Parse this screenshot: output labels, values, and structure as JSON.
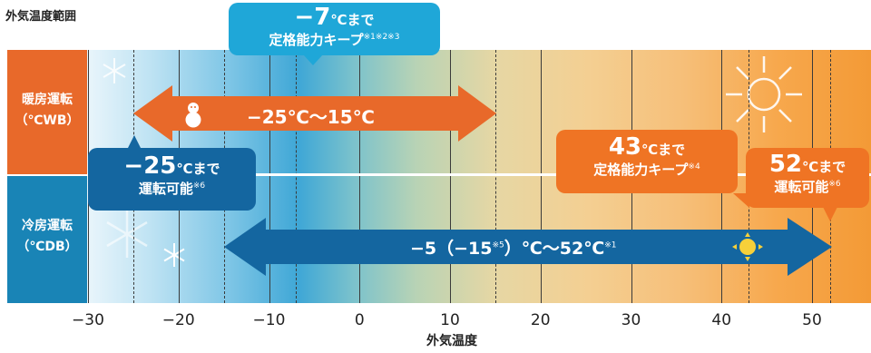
{
  "title": "外気温度範囲",
  "rows": {
    "heating": {
      "line1": "暖房運転",
      "line2": "（℃WB）"
    },
    "cooling": {
      "line1": "冷房運転",
      "line2": "（℃DB）"
    }
  },
  "x_axis": {
    "label": "外気温度",
    "ticks": [
      "−30",
      "−20",
      "−10",
      "0",
      "10",
      "20",
      "30",
      "40",
      "50"
    ]
  },
  "callouts": {
    "rated_heating": {
      "line1": "−7",
      "line1_unit": "℃まで",
      "line2": "定格能力キープ",
      "note": "※1※2※3"
    },
    "heating_min": {
      "line1": "−25",
      "line1_unit": "℃まで",
      "line2": "運転可能",
      "note": "※6"
    },
    "rated_cooling": {
      "line1": "43",
      "line1_unit": "℃まで",
      "line2": "定格能力キープ",
      "note": "※4"
    },
    "cooling_max": {
      "line1": "52",
      "line1_unit": "℃まで",
      "line2": "運転可能",
      "note": "※6"
    }
  },
  "ranges": {
    "heating": {
      "label": "−25℃〜15℃",
      "min": -25,
      "max": 15
    },
    "cooling": {
      "label_a": "−5（−15",
      "label_note1": "※5",
      "label_b": "）℃〜52℃",
      "label_note2": "※1",
      "min": -15,
      "max": 52
    }
  },
  "markers_dashed": [
    -25,
    -15,
    -7,
    15,
    43,
    52
  ],
  "colors": {
    "heating": "#e8692a",
    "cooling": "#1466a0",
    "accent_blue": "#1fa7d8",
    "accent_orange": "#ef7424"
  },
  "icons": [
    "snowman-icon",
    "snowflake-icon",
    "sun-icon"
  ]
}
